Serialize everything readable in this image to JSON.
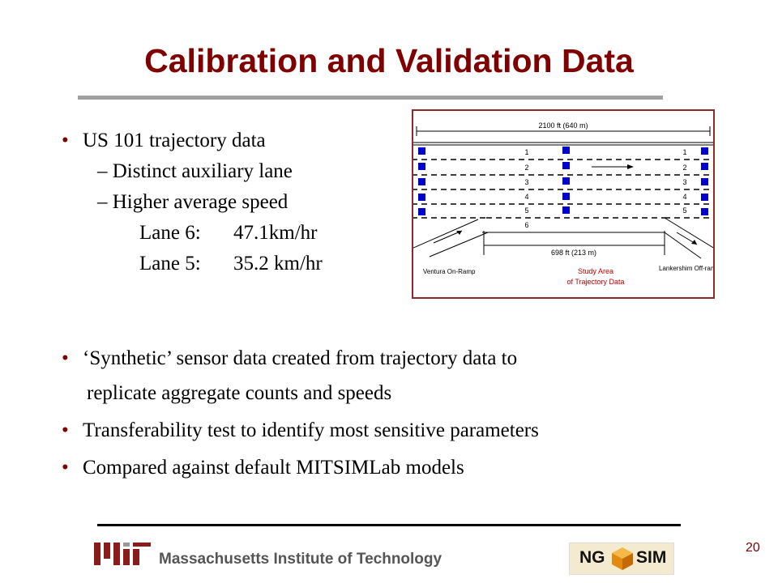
{
  "title": "Calibration and Validation Data",
  "bullets_top": {
    "main": "US 101 trajectory data",
    "sub1": "– Distinct auxiliary lane",
    "sub2": "– Higher average speed",
    "lane6_label": "Lane 6:",
    "lane6_value": "47.1km/hr",
    "lane5_label": "Lane 5:",
    "lane5_value": "35.2 km/hr"
  },
  "figure": {
    "dimension_top": "2100 ft (640 m)",
    "dimension_study": "698 ft (213 m)",
    "left_ramp": "Ventura On-Ramp",
    "right_ramp": "Lankershim Off-ramp",
    "study_area_line1": "Study Area",
    "study_area_line2": "of Trajectory Data",
    "lane_numbers_left": [
      "1",
      "2",
      "3",
      "4",
      "5",
      "6"
    ],
    "lane_numbers_right": [
      "1",
      "2",
      "3",
      "4",
      "5"
    ],
    "sensor_color": "#0000cc"
  },
  "bullets_bottom": [
    "‘Synthetic’ sensor data created from trajectory data to",
    "replicate aggregate counts and speeds",
    "Transferability test to identify most sensitive parameters",
    "Compared against default MITSIMLab models"
  ],
  "footer": {
    "institution": "Massachusetts Institute of Technology",
    "ngsim_left": "NG",
    "ngsim_right": "SIM",
    "page_number": "20"
  },
  "colors": {
    "title": "#800000",
    "bullet": "#800000",
    "frame": "#8b2a2a"
  }
}
